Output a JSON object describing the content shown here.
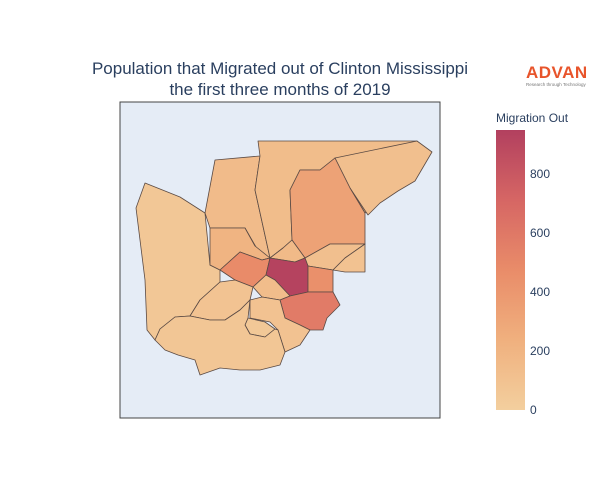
{
  "title": {
    "line1": "Population that Migrated out of Clinton Mississippi",
    "line2": "the first three months of 2019"
  },
  "logo": {
    "name": "ADVAN",
    "tagline": "Research through Technology"
  },
  "colorbar": {
    "title": "Migration Out",
    "min": 0,
    "max": 950,
    "ticks": [
      {
        "label": "0",
        "value": 0
      },
      {
        "label": "200",
        "value": 200
      },
      {
        "label": "400",
        "value": 400
      },
      {
        "label": "600",
        "value": 600
      },
      {
        "label": "800",
        "value": 800
      }
    ],
    "stops": [
      "#f3cf9e",
      "#f0b07e",
      "#e98c69",
      "#d66664",
      "#b2405f"
    ]
  },
  "chart_data": {
    "type": "choropleth",
    "title": "Population that Migrated out of Clinton Mississippi the first three months of 2019",
    "colorbar_title": "Migration Out",
    "range": [
      0,
      950
    ],
    "regions": [
      {
        "id": "west",
        "value": 60
      },
      {
        "id": "northwest",
        "value": 150
      },
      {
        "id": "north-center",
        "value": 140
      },
      {
        "id": "northeast",
        "value": 120
      },
      {
        "id": "east-center",
        "value": 330
      },
      {
        "id": "center-left",
        "value": 210
      },
      {
        "id": "center-mid",
        "value": 160
      },
      {
        "id": "east-small",
        "value": 120
      },
      {
        "id": "far-east",
        "value": 100
      },
      {
        "id": "center-west-hot",
        "value": 480
      },
      {
        "id": "center-hot",
        "value": 930
      },
      {
        "id": "right-of-center",
        "value": 450
      },
      {
        "id": "south-center",
        "value": 140
      },
      {
        "id": "south-hot",
        "value": 580
      },
      {
        "id": "south-west",
        "value": 90
      },
      {
        "id": "south-pocket",
        "value": 50
      },
      {
        "id": "south-mid",
        "value": 100
      },
      {
        "id": "south",
        "value": 70
      }
    ]
  }
}
